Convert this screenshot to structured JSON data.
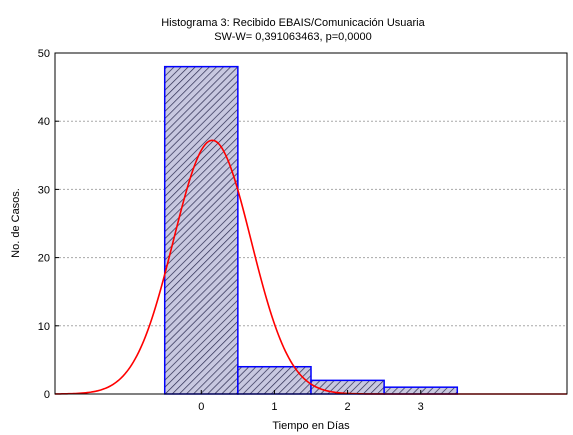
{
  "chart_data": {
    "type": "bar",
    "title": "Histograma 3: Recibido EBAIS/Comunicación Usuaria",
    "subtitle": "SW-W= 0,391063463, p=0,0000",
    "xlabel": "Tiempo en Días",
    "ylabel": "No. de Casos.",
    "categories": [
      "0",
      "1",
      "2",
      "3"
    ],
    "values": [
      48,
      4,
      2,
      1
    ],
    "xlim": [
      -2,
      5
    ],
    "ylim": [
      0,
      50
    ],
    "yticks": [
      "0",
      "10",
      "20",
      "30",
      "40",
      "50"
    ],
    "grid": true,
    "fit_curve": {
      "type": "normal",
      "peak": 37.2,
      "mean": 0.15,
      "sd": 0.53
    },
    "colors": {
      "bar_fill": "#c8c8e0",
      "bar_hatch": "#2a2a50",
      "bar_edge": "#0000ff",
      "curve": "#ff0000",
      "grid": "#a8a8a8"
    }
  }
}
